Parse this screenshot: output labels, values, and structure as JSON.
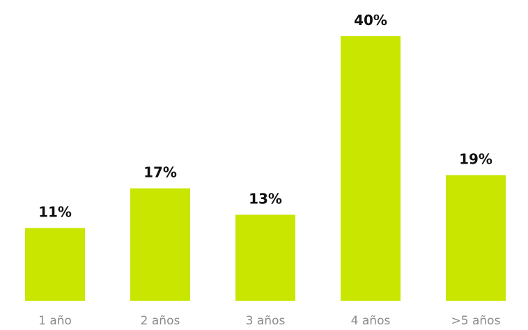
{
  "chart_data": {
    "type": "bar",
    "categories": [
      "1 año",
      "2 años",
      "3 años",
      "4 años",
      ">5 años"
    ],
    "values": [
      11,
      17,
      13,
      40,
      19
    ],
    "value_labels": [
      "11%",
      "17%",
      "13%",
      "40%",
      "19%"
    ],
    "ylim": [
      0,
      40
    ],
    "grid": false,
    "legend": "none",
    "bar_color": "#c8e600"
  }
}
